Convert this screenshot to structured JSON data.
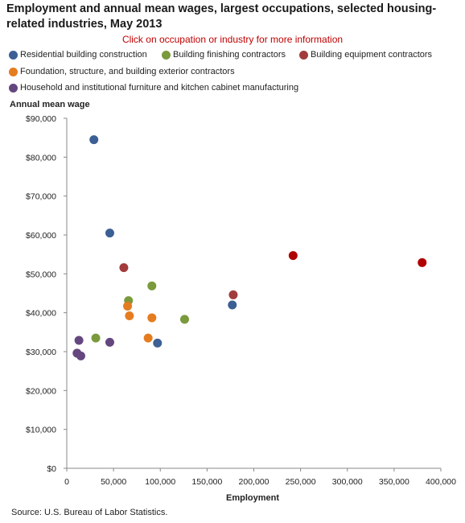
{
  "title": "Employment and annual mean wages, largest occupations, selected housing-related industries, May 2013",
  "subtitle": "Click on occupation or industry for more information",
  "source": "Source: U.S. Bureau of Labor Statistics.",
  "legend": [
    {
      "label": "Residential building construction",
      "color": "#3c5f95"
    },
    {
      "label": "Building finishing contractors",
      "color": "#7a9a3c"
    },
    {
      "label": "Building equipment contractors",
      "color": "#a23b3b"
    },
    {
      "label": "Foundation, structure, and building exterior contractors",
      "color": "#e57c1f"
    },
    {
      "label": "Household and institutional furniture and kitchen cabinet manufacturing",
      "color": "#65477f"
    }
  ],
  "chart_data": {
    "type": "scatter",
    "title": "Employment and annual mean wages, largest occupations, selected housing-related industries, May 2013",
    "xlabel": "Employment",
    "ylabel": "Annual mean wage",
    "xlim": [
      0,
      400000
    ],
    "ylim": [
      0,
      90000
    ],
    "x_ticks": [
      "0",
      "50,000",
      "100,000",
      "150,000",
      "200,000",
      "250,000",
      "300,000",
      "350,000",
      "400,000"
    ],
    "y_ticks": [
      "$0",
      "$10,000",
      "$20,000",
      "$30,000",
      "$40,000",
      "$50,000",
      "$60,000",
      "$70,000",
      "$80,000",
      "$90,000"
    ],
    "grid": false,
    "legend_position": "top",
    "series": [
      {
        "name": "Residential building construction",
        "color": "#3c5f95",
        "points": [
          [
            29000,
            84500
          ],
          [
            46000,
            60500
          ],
          [
            97000,
            32200
          ],
          [
            177000,
            42000
          ]
        ]
      },
      {
        "name": "Building finishing contractors",
        "color": "#7a9a3c",
        "points": [
          [
            31000,
            33500
          ],
          [
            66000,
            43100
          ],
          [
            91000,
            46900
          ],
          [
            126000,
            38300
          ]
        ]
      },
      {
        "name": "Building equipment contractors",
        "color": "#a23b3b",
        "points": [
          [
            61000,
            51600
          ],
          [
            178000,
            44600
          ]
        ]
      },
      {
        "name": "Building equipment contractors (highlighted)",
        "color": "#b00000",
        "points": [
          [
            242000,
            54700
          ],
          [
            380000,
            52900
          ]
        ]
      },
      {
        "name": "Foundation, structure, and building exterior contractors",
        "color": "#e57c1f",
        "points": [
          [
            65000,
            41700
          ],
          [
            67000,
            39200
          ],
          [
            87000,
            33500
          ],
          [
            91000,
            38700
          ]
        ]
      },
      {
        "name": "Household and institutional furniture and kitchen cabinet manufacturing",
        "color": "#65477f",
        "points": [
          [
            13000,
            32900
          ],
          [
            11000,
            29600
          ],
          [
            15000,
            28900
          ],
          [
            46000,
            32400
          ]
        ]
      }
    ]
  }
}
